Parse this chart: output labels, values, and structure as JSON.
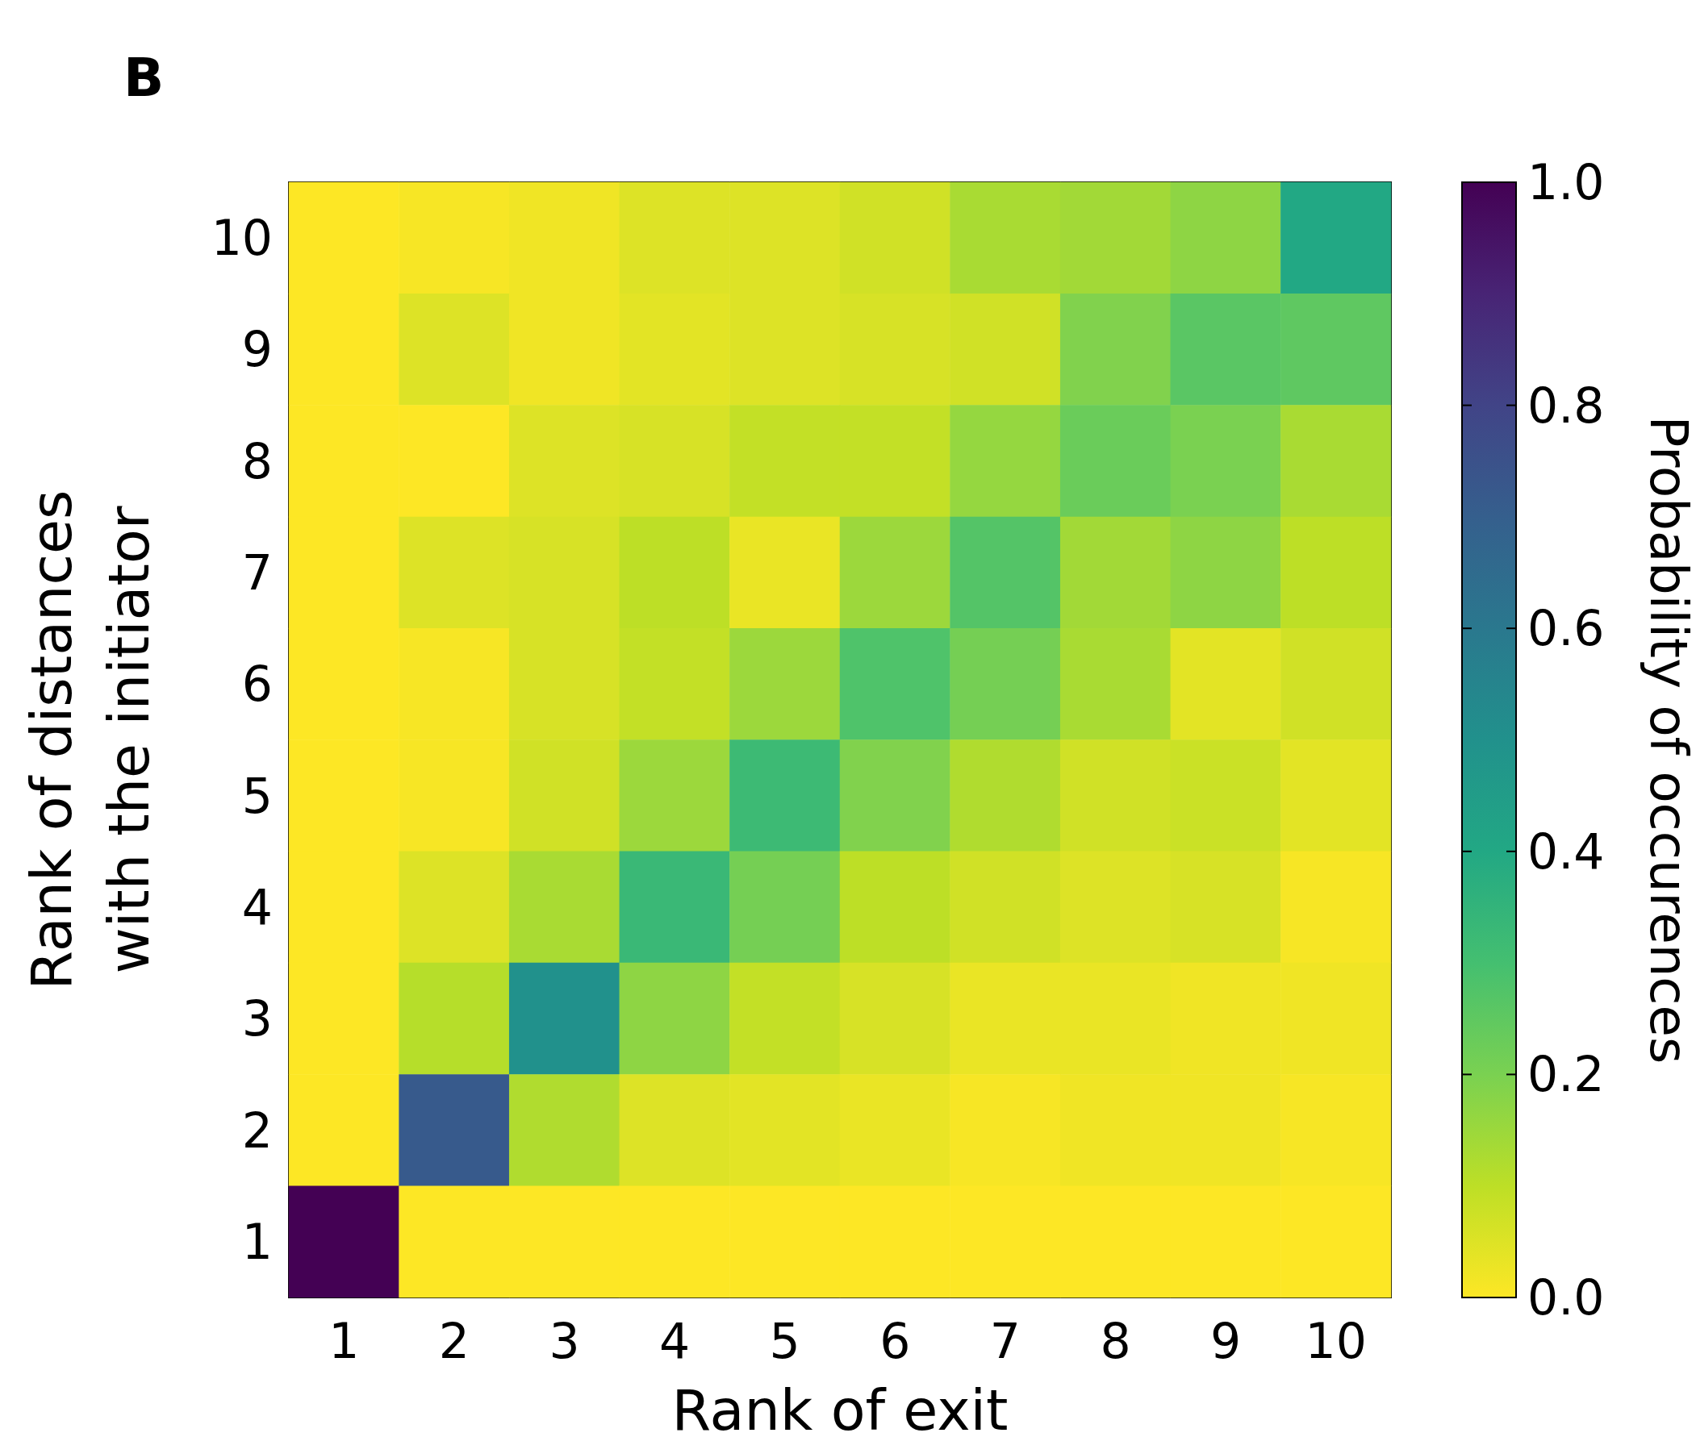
{
  "chart_data": {
    "type": "heatmap",
    "title": "B",
    "xlabel": "Rank of exit",
    "ylabel": "Rank of distances\nwith the initiator",
    "clabel": "Probability of occurences",
    "categories": [
      "1",
      "2",
      "3",
      "4",
      "5",
      "6",
      "7",
      "8",
      "9",
      "10"
    ],
    "y_categories": [
      "10",
      "9",
      "8",
      "7",
      "6",
      "5",
      "4",
      "3",
      "2",
      "1"
    ],
    "cells": [
      [
        0.0,
        0.01,
        0.02,
        0.05,
        0.05,
        0.07,
        0.13,
        0.14,
        0.17,
        0.4
      ],
      [
        0.0,
        0.05,
        0.02,
        0.04,
        0.05,
        0.06,
        0.07,
        0.19,
        0.26,
        0.25
      ],
      [
        0.0,
        0.0,
        0.05,
        0.06,
        0.09,
        0.09,
        0.16,
        0.23,
        0.2,
        0.13
      ],
      [
        0.0,
        0.05,
        0.06,
        0.1,
        0.03,
        0.15,
        0.27,
        0.14,
        0.17,
        0.1
      ],
      [
        0.0,
        0.01,
        0.06,
        0.09,
        0.15,
        0.28,
        0.21,
        0.13,
        0.04,
        0.07
      ],
      [
        0.0,
        0.01,
        0.07,
        0.15,
        0.32,
        0.19,
        0.12,
        0.07,
        0.08,
        0.04
      ],
      [
        0.0,
        0.05,
        0.13,
        0.33,
        0.21,
        0.1,
        0.07,
        0.05,
        0.06,
        0.01
      ],
      [
        0.0,
        0.11,
        0.5,
        0.17,
        0.09,
        0.06,
        0.03,
        0.03,
        0.02,
        0.02
      ],
      [
        0.0,
        0.72,
        0.12,
        0.05,
        0.04,
        0.03,
        0.01,
        0.02,
        0.02,
        0.01
      ],
      [
        1.0,
        0.0,
        0.0,
        0.0,
        0.0,
        0.0,
        0.0,
        0.0,
        0.0,
        0.0
      ]
    ],
    "clim": [
      0,
      1
    ],
    "cticks": [
      {
        "value": 0,
        "label": "0.0"
      },
      {
        "value": 0.2,
        "label": "0.2"
      },
      {
        "value": 0.4,
        "label": "0.4"
      },
      {
        "value": 0.6,
        "label": "0.6"
      },
      {
        "value": 0.8,
        "label": "0.8"
      },
      {
        "value": 1,
        "label": "1.0"
      }
    ]
  }
}
